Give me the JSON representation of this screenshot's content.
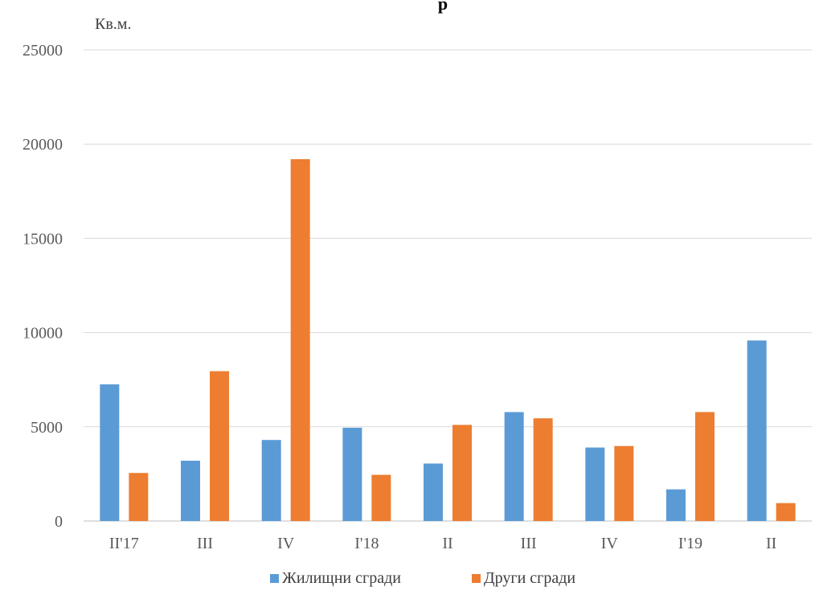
{
  "chart_data": {
    "type": "bar",
    "title": "р",
    "ylabel": "Кв.м.",
    "ylim": [
      0,
      25000
    ],
    "yticks": [
      0,
      5000,
      10000,
      15000,
      20000,
      25000
    ],
    "categories": [
      "II'17",
      "III",
      "IV",
      "I'18",
      "II",
      "III",
      "IV",
      "I'19",
      "II"
    ],
    "series": [
      {
        "name": "Жилищни сгради",
        "color": "#5B9BD5",
        "values": [
          7250,
          3200,
          4300,
          4950,
          3050,
          5780,
          3900,
          1680,
          9580
        ]
      },
      {
        "name": "Други сгради",
        "color": "#ED7D31",
        "values": [
          2550,
          7950,
          19200,
          2450,
          5100,
          5450,
          3980,
          5780,
          950
        ]
      }
    ],
    "grid": true,
    "legend": "bottom"
  }
}
